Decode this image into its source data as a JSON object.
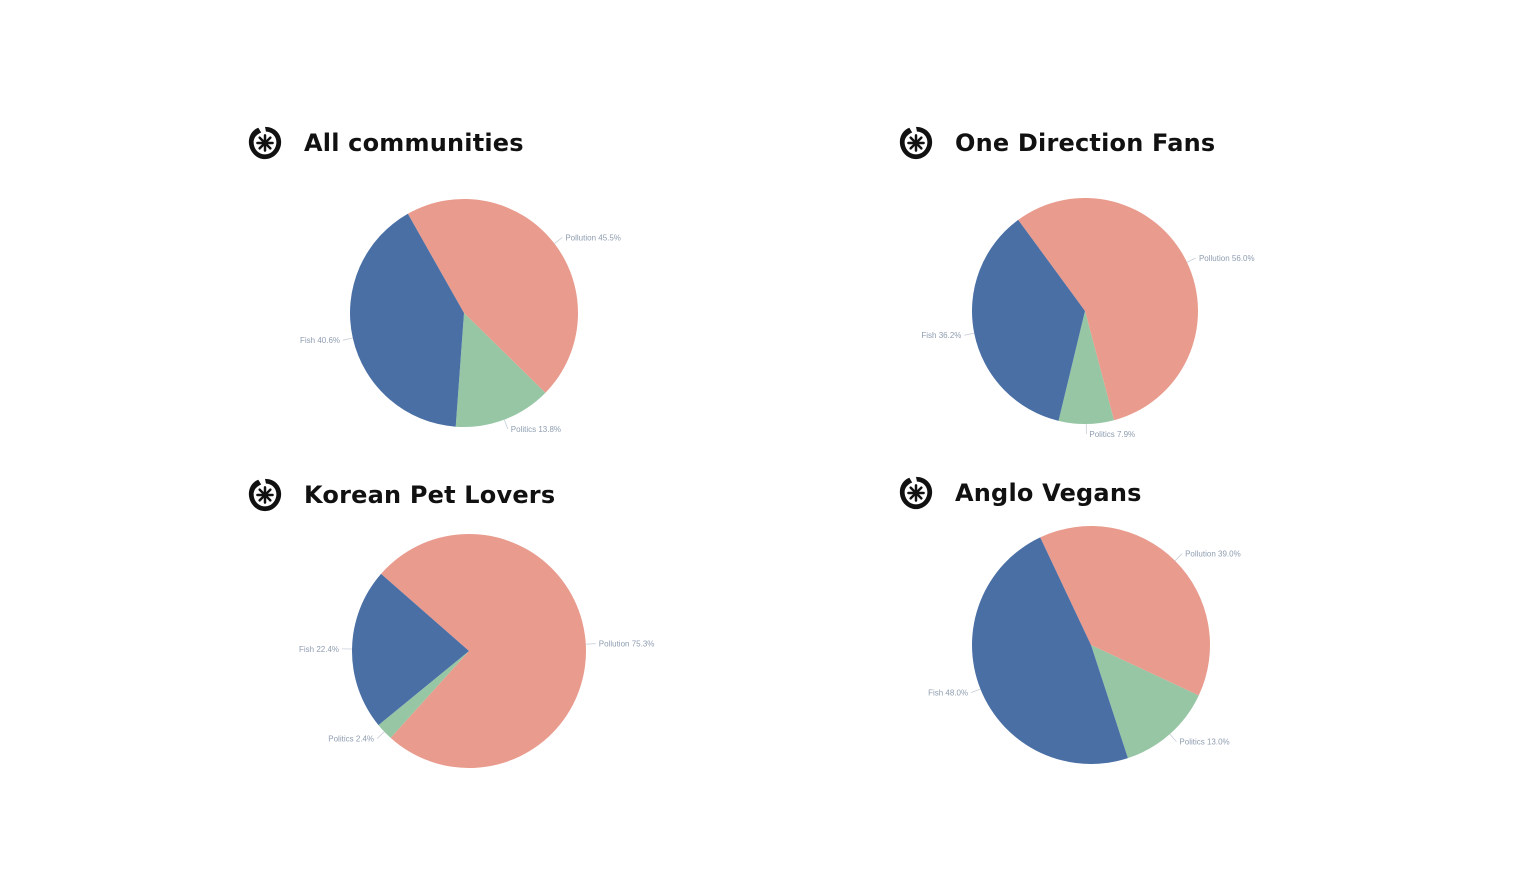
{
  "colors": {
    "Pollution": "#e99b8d",
    "Fish": "#4a6fa5",
    "Politics": "#97c6a5"
  },
  "icon": "asterisk-badge-icon",
  "chart_data": [
    {
      "type": "pie",
      "title": "All communities",
      "slices": [
        {
          "label": "Pollution",
          "value": 45.5,
          "text": "Pollution 45.5%"
        },
        {
          "label": "Politics",
          "value": 13.8,
          "text": "Politics 13.8%"
        },
        {
          "label": "Fish",
          "value": 40.6,
          "text": "Fish 40.6%"
        }
      ]
    },
    {
      "type": "pie",
      "title": "One Direction Fans",
      "slices": [
        {
          "label": "Pollution",
          "value": 56.0,
          "text": "Pollution 56.0%"
        },
        {
          "label": "Politics",
          "value": 7.9,
          "text": "Politics 7.9%"
        },
        {
          "label": "Fish",
          "value": 36.2,
          "text": "Fish 36.2%"
        }
      ]
    },
    {
      "type": "pie",
      "title": "Korean Pet Lovers",
      "slices": [
        {
          "label": "Pollution",
          "value": 75.3,
          "text": "Pollution 75.3%"
        },
        {
          "label": "Politics",
          "value": 2.4,
          "text": "Politics 2.4%"
        },
        {
          "label": "Fish",
          "value": 22.4,
          "text": "Fish 22.4%"
        }
      ]
    },
    {
      "type": "pie",
      "title": "Anglo Vegans",
      "slices": [
        {
          "label": "Pollution",
          "value": 39.0,
          "text": "Pollution 39.0%"
        },
        {
          "label": "Politics",
          "value": 13.0,
          "text": "Politics 13.0%"
        },
        {
          "label": "Fish",
          "value": 48.0,
          "text": "Fish 48.0%"
        }
      ]
    }
  ]
}
